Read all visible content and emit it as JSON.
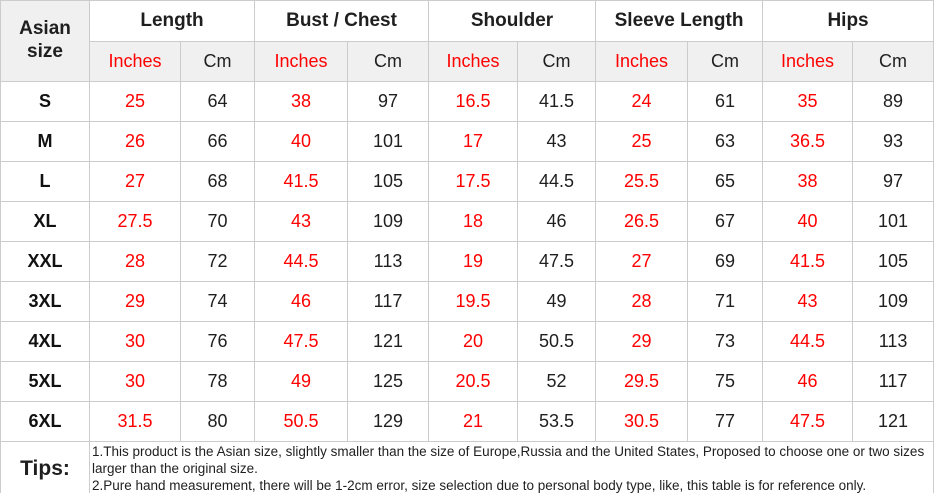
{
  "table": {
    "corner_label": "Asian size",
    "groups": [
      {
        "label": "Length"
      },
      {
        "label": "Bust / Chest"
      },
      {
        "label": "Shoulder"
      },
      {
        "label": "Sleeve Length"
      },
      {
        "label": "Hips"
      }
    ],
    "unit_headers": {
      "inches": "Inches",
      "cm": "Cm"
    },
    "rows": [
      {
        "size": "S",
        "values": [
          "25",
          "64",
          "38",
          "97",
          "16.5",
          "41.5",
          "24",
          "61",
          "35",
          "89"
        ]
      },
      {
        "size": "M",
        "values": [
          "26",
          "66",
          "40",
          "101",
          "17",
          "43",
          "25",
          "63",
          "36.5",
          "93"
        ]
      },
      {
        "size": "L",
        "values": [
          "27",
          "68",
          "41.5",
          "105",
          "17.5",
          "44.5",
          "25.5",
          "65",
          "38",
          "97"
        ]
      },
      {
        "size": "XL",
        "values": [
          "27.5",
          "70",
          "43",
          "109",
          "18",
          "46",
          "26.5",
          "67",
          "40",
          "101"
        ]
      },
      {
        "size": "XXL",
        "values": [
          "28",
          "72",
          "44.5",
          "113",
          "19",
          "47.5",
          "27",
          "69",
          "41.5",
          "105"
        ]
      },
      {
        "size": "3XL",
        "values": [
          "29",
          "74",
          "46",
          "117",
          "19.5",
          "49",
          "28",
          "71",
          "43",
          "109"
        ]
      },
      {
        "size": "4XL",
        "values": [
          "30",
          "76",
          "47.5",
          "121",
          "20",
          "50.5",
          "29",
          "73",
          "44.5",
          "113"
        ]
      },
      {
        "size": "5XL",
        "values": [
          "30",
          "78",
          "49",
          "125",
          "20.5",
          "52",
          "29.5",
          "75",
          "46",
          "117"
        ]
      },
      {
        "size": "6XL",
        "values": [
          "31.5",
          "80",
          "50.5",
          "129",
          "21",
          "53.5",
          "30.5",
          "77",
          "47.5",
          "121"
        ]
      }
    ],
    "tips": {
      "label": "Tips:",
      "notes": [
        "1.This product is the Asian size, slightly smaller than the size of Europe,Russia and the United States, Proposed to choose one or two sizes larger than the original size.",
        "2.Pure hand measurement, there will be 1-2cm error, size selection due to personal body type, like, this table is for reference only."
      ]
    },
    "colors": {
      "inches_red": "#ff0000",
      "text_dark": "#1f1f1f",
      "header_bg": "#f0f0f0",
      "border": "#cccccc"
    }
  }
}
